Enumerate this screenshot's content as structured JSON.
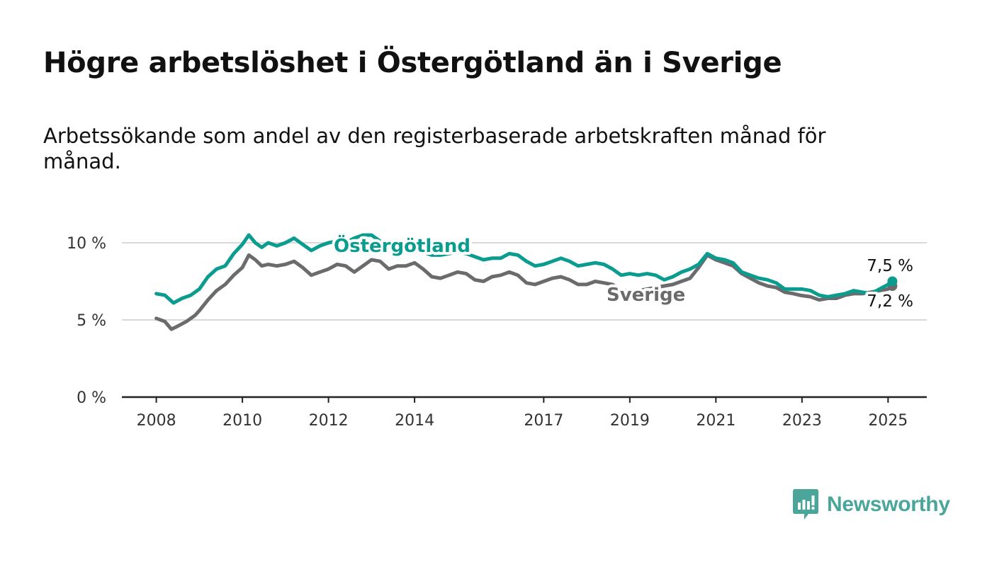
{
  "title": "Högre arbetslöshet i Östergötland än i Sverige",
  "subtitle": "Arbetssökande som andel av den registerbaserade arbetskraften månad för månad.",
  "brand": {
    "name": "Newsworthy",
    "color": "#4aa69a",
    "icon": "newsworthy-logo-icon"
  },
  "colors": {
    "ostergotland": "#0a9c8e",
    "sverige": "#6b6b6d",
    "grid": "#d9d9d9",
    "axis": "#222222",
    "label_halo": "#ffffff"
  },
  "chart_data": {
    "type": "line",
    "title": "Högre arbetslöshet i Östergötland än i Sverige",
    "subtitle": "Arbetssökande som andel av den registerbaserade arbetskraften månad för månad.",
    "xlabel": "",
    "ylabel": "",
    "ylim": [
      0,
      10
    ],
    "y_ticks": [
      0,
      5,
      10
    ],
    "y_tick_labels": [
      "0 %",
      "5 %",
      "10 %"
    ],
    "x_ticks": [
      2008,
      2010,
      2012,
      2014,
      2017,
      2019,
      2021,
      2023,
      2025
    ],
    "x_tick_labels": [
      "2008",
      "2010",
      "2012",
      "2014",
      "2017",
      "2019",
      "2021",
      "2023",
      "2025"
    ],
    "grid": true,
    "x_range": [
      2007.2,
      2025.9
    ],
    "series": [
      {
        "name": "Östergötland",
        "color": "#0a9c8e",
        "end_label": "7,5 %",
        "points": [
          [
            2008.0,
            6.7
          ],
          [
            2008.2,
            6.6
          ],
          [
            2008.4,
            6.1
          ],
          [
            2008.6,
            6.4
          ],
          [
            2008.8,
            6.6
          ],
          [
            2009.0,
            7.0
          ],
          [
            2009.2,
            7.8
          ],
          [
            2009.4,
            8.3
          ],
          [
            2009.6,
            8.5
          ],
          [
            2009.8,
            9.3
          ],
          [
            2010.0,
            9.9
          ],
          [
            2010.15,
            10.5
          ],
          [
            2010.3,
            10.0
          ],
          [
            2010.45,
            9.7
          ],
          [
            2010.6,
            10.0
          ],
          [
            2010.8,
            9.8
          ],
          [
            2011.0,
            10.0
          ],
          [
            2011.2,
            10.3
          ],
          [
            2011.4,
            9.9
          ],
          [
            2011.6,
            9.5
          ],
          [
            2011.8,
            9.8
          ],
          [
            2012.0,
            10.0
          ],
          [
            2012.2,
            10.1
          ],
          [
            2012.4,
            10.0
          ],
          [
            2012.6,
            10.3
          ],
          [
            2012.8,
            10.5
          ],
          [
            2013.0,
            10.5
          ],
          [
            2013.2,
            10.1
          ],
          [
            2013.4,
            9.8
          ],
          [
            2013.6,
            9.9
          ],
          [
            2013.8,
            9.6
          ],
          [
            2014.0,
            9.5
          ],
          [
            2014.2,
            9.4
          ],
          [
            2014.4,
            9.2
          ],
          [
            2014.6,
            9.2
          ],
          [
            2014.8,
            9.3
          ],
          [
            2015.0,
            9.4
          ],
          [
            2015.2,
            9.3
          ],
          [
            2015.4,
            9.1
          ],
          [
            2015.6,
            8.9
          ],
          [
            2015.8,
            9.0
          ],
          [
            2016.0,
            9.0
          ],
          [
            2016.2,
            9.3
          ],
          [
            2016.4,
            9.2
          ],
          [
            2016.6,
            8.8
          ],
          [
            2016.8,
            8.5
          ],
          [
            2017.0,
            8.6
          ],
          [
            2017.2,
            8.8
          ],
          [
            2017.4,
            9.0
          ],
          [
            2017.6,
            8.8
          ],
          [
            2017.8,
            8.5
          ],
          [
            2018.0,
            8.6
          ],
          [
            2018.2,
            8.7
          ],
          [
            2018.4,
            8.6
          ],
          [
            2018.6,
            8.3
          ],
          [
            2018.8,
            7.9
          ],
          [
            2019.0,
            8.0
          ],
          [
            2019.2,
            7.9
          ],
          [
            2019.4,
            8.0
          ],
          [
            2019.6,
            7.9
          ],
          [
            2019.8,
            7.6
          ],
          [
            2020.0,
            7.8
          ],
          [
            2020.2,
            8.1
          ],
          [
            2020.4,
            8.3
          ],
          [
            2020.6,
            8.6
          ],
          [
            2020.8,
            9.3
          ],
          [
            2021.0,
            9.0
          ],
          [
            2021.2,
            8.9
          ],
          [
            2021.4,
            8.7
          ],
          [
            2021.6,
            8.1
          ],
          [
            2021.8,
            7.9
          ],
          [
            2022.0,
            7.7
          ],
          [
            2022.2,
            7.6
          ],
          [
            2022.4,
            7.4
          ],
          [
            2022.6,
            7.0
          ],
          [
            2022.8,
            7.0
          ],
          [
            2023.0,
            7.0
          ],
          [
            2023.2,
            6.9
          ],
          [
            2023.4,
            6.6
          ],
          [
            2023.6,
            6.5
          ],
          [
            2023.8,
            6.6
          ],
          [
            2024.0,
            6.7
          ],
          [
            2024.2,
            6.9
          ],
          [
            2024.4,
            6.8
          ],
          [
            2024.6,
            6.7
          ],
          [
            2024.8,
            7.0
          ],
          [
            2025.0,
            7.3
          ],
          [
            2025.1,
            7.5
          ]
        ]
      },
      {
        "name": "Sverige",
        "color": "#6b6b6d",
        "end_label": "7,2 %",
        "points": [
          [
            2008.0,
            5.1
          ],
          [
            2008.2,
            4.9
          ],
          [
            2008.35,
            4.4
          ],
          [
            2008.5,
            4.6
          ],
          [
            2008.7,
            4.9
          ],
          [
            2008.9,
            5.3
          ],
          [
            2009.0,
            5.6
          ],
          [
            2009.2,
            6.3
          ],
          [
            2009.4,
            6.9
          ],
          [
            2009.6,
            7.3
          ],
          [
            2009.8,
            7.9
          ],
          [
            2010.0,
            8.4
          ],
          [
            2010.15,
            9.2
          ],
          [
            2010.3,
            8.9
          ],
          [
            2010.45,
            8.5
          ],
          [
            2010.6,
            8.6
          ],
          [
            2010.8,
            8.5
          ],
          [
            2011.0,
            8.6
          ],
          [
            2011.2,
            8.8
          ],
          [
            2011.4,
            8.4
          ],
          [
            2011.6,
            7.9
          ],
          [
            2011.8,
            8.1
          ],
          [
            2012.0,
            8.3
          ],
          [
            2012.2,
            8.6
          ],
          [
            2012.4,
            8.5
          ],
          [
            2012.6,
            8.1
          ],
          [
            2012.8,
            8.5
          ],
          [
            2013.0,
            8.9
          ],
          [
            2013.2,
            8.8
          ],
          [
            2013.4,
            8.3
          ],
          [
            2013.6,
            8.5
          ],
          [
            2013.8,
            8.5
          ],
          [
            2014.0,
            8.7
          ],
          [
            2014.2,
            8.3
          ],
          [
            2014.4,
            7.8
          ],
          [
            2014.6,
            7.7
          ],
          [
            2014.8,
            7.9
          ],
          [
            2015.0,
            8.1
          ],
          [
            2015.2,
            8.0
          ],
          [
            2015.4,
            7.6
          ],
          [
            2015.6,
            7.5
          ],
          [
            2015.8,
            7.8
          ],
          [
            2016.0,
            7.9
          ],
          [
            2016.2,
            8.1
          ],
          [
            2016.4,
            7.9
          ],
          [
            2016.6,
            7.4
          ],
          [
            2016.8,
            7.3
          ],
          [
            2017.0,
            7.5
          ],
          [
            2017.2,
            7.7
          ],
          [
            2017.4,
            7.8
          ],
          [
            2017.6,
            7.6
          ],
          [
            2017.8,
            7.3
          ],
          [
            2018.0,
            7.3
          ],
          [
            2018.2,
            7.5
          ],
          [
            2018.4,
            7.4
          ],
          [
            2018.6,
            7.3
          ],
          [
            2018.8,
            6.9
          ],
          [
            2019.0,
            6.9
          ],
          [
            2019.2,
            6.9
          ],
          [
            2019.4,
            7.0
          ],
          [
            2019.6,
            7.1
          ],
          [
            2019.8,
            7.2
          ],
          [
            2020.0,
            7.3
          ],
          [
            2020.2,
            7.5
          ],
          [
            2020.4,
            7.7
          ],
          [
            2020.6,
            8.4
          ],
          [
            2020.8,
            9.2
          ],
          [
            2021.0,
            8.9
          ],
          [
            2021.2,
            8.7
          ],
          [
            2021.4,
            8.5
          ],
          [
            2021.6,
            8.0
          ],
          [
            2021.8,
            7.7
          ],
          [
            2022.0,
            7.4
          ],
          [
            2022.2,
            7.2
          ],
          [
            2022.4,
            7.1
          ],
          [
            2022.6,
            6.8
          ],
          [
            2022.8,
            6.7
          ],
          [
            2022.95,
            6.6
          ],
          [
            2023.2,
            6.5
          ],
          [
            2023.4,
            6.3
          ],
          [
            2023.6,
            6.4
          ],
          [
            2023.8,
            6.4
          ],
          [
            2024.0,
            6.6
          ],
          [
            2024.2,
            6.7
          ],
          [
            2024.4,
            6.7
          ],
          [
            2024.6,
            6.8
          ],
          [
            2024.8,
            6.9
          ],
          [
            2025.0,
            7.0
          ],
          [
            2025.1,
            7.2
          ]
        ]
      }
    ],
    "annotations": [
      "Östergötland",
      "Sverige",
      "7,5 %",
      "7,2 %"
    ]
  }
}
